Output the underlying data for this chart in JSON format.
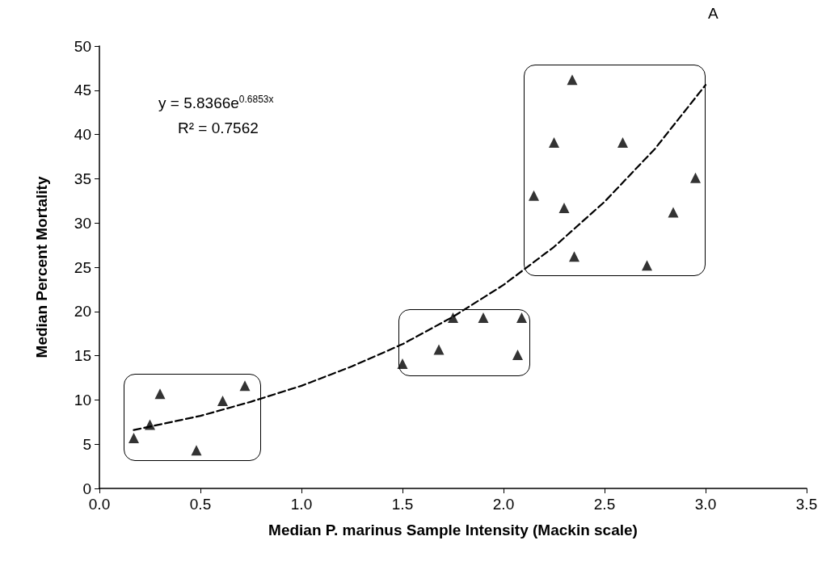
{
  "chart_data": {
    "type": "scatter",
    "xlabel": "Median P. marinus Sample Intensity (Mackin scale)",
    "ylabel": "Median Percent Mortality",
    "annotations": [
      "A",
      "y = 5.8366e$^{0.6853x}$",
      "R² = 0.7562"
    ],
    "xlim": [
      0,
      3.5
    ],
    "xticks": [
      {
        "value": 0,
        "label": "0.0"
      },
      {
        "value": 0.5,
        "label": "0.5"
      },
      {
        "value": 1,
        "label": "1.0"
      },
      {
        "value": 1.5,
        "label": "1.5"
      },
      {
        "value": 2,
        "label": "2.0"
      },
      {
        "value": 2.5,
        "label": "2.5"
      },
      {
        "value": 3,
        "label": "3.0"
      },
      {
        "value": 3.5,
        "label": "3.5"
      }
    ],
    "ylim": [
      0,
      50
    ],
    "yticks": [
      0,
      5,
      10,
      15,
      20,
      25,
      30,
      35,
      40,
      45,
      50
    ],
    "grid": false,
    "series": [
      {
        "color": "#000000",
        "marker": "triangle",
        "x": [
          0.17,
          0.25,
          0.3,
          0.48,
          0.61,
          0.72,
          1.5,
          1.68,
          1.75,
          1.9,
          2.09,
          2.07,
          2.15,
          2.25,
          2.3,
          2.34,
          2.35,
          2.59,
          2.71,
          2.84,
          2.95
        ],
        "values": [
          5.7,
          7.2,
          10.7,
          4.3,
          9.9,
          11.6,
          14.1,
          15.7,
          19.3,
          19.3,
          19.3,
          15.1,
          33.1,
          39.1,
          31.7,
          46.2,
          26.2,
          39.1,
          25.2,
          31.2,
          35.1
        ]
      },
      {
        "type": "line",
        "color": "#000000",
        "marker": "none",
        "line_style": "dashed",
        "x": [
          0.17,
          0.5,
          0.75,
          1.0,
          1.25,
          1.5,
          1.75,
          2.0,
          2.25,
          2.5,
          2.75,
          3.0
        ],
        "values": [
          6.6,
          8.2,
          9.8,
          11.6,
          13.8,
          16.3,
          19.4,
          23.0,
          27.3,
          32.4,
          38.4,
          45.6
        ]
      }
    ]
  }
}
